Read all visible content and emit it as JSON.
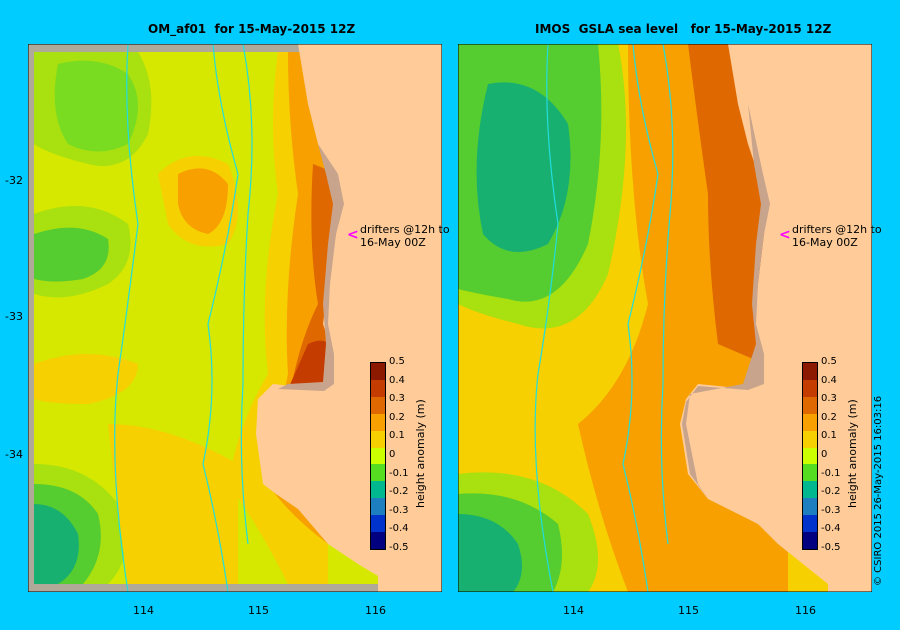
{
  "panels": [
    {
      "title": "OM_af01  for 15-May-2015 12Z"
    },
    {
      "title": "IMOS  GSLA sea level   for 15-May-2015 12Z"
    }
  ],
  "axes": {
    "y_ticks": [
      "-32",
      "-33",
      "-34"
    ],
    "x_ticks": [
      "114",
      "115",
      "116"
    ]
  },
  "drifters_note": {
    "line1": "drifters @12h to",
    "line2": "16-May 00Z",
    "arrow": "<"
  },
  "colorbar": {
    "title": "height anomaly (m)",
    "ticks": [
      "0.5",
      "0.4",
      "0.3",
      "0.2",
      "0.1",
      "0",
      "-0.1",
      "-0.2",
      "-0.3",
      "-0.4",
      "-0.5"
    ],
    "range": [
      -0.5,
      0.5
    ],
    "colors": [
      "#8b1a00",
      "#c43c00",
      "#e06800",
      "#f7a000",
      "#f6d000",
      "#ccff00",
      "#55dd22",
      "#00b890",
      "#1d7ec0",
      "#0033cc",
      "#000080"
    ]
  },
  "colors": {
    "background": "#00ccff",
    "land": "#ffcc99",
    "shelf": "#c8a48c",
    "bathymetry_line": "#22dddd",
    "drifter_arrow": "#ff00ff"
  },
  "copyright": "© CSIRO 2015   26-May-2015 16:03:16"
}
